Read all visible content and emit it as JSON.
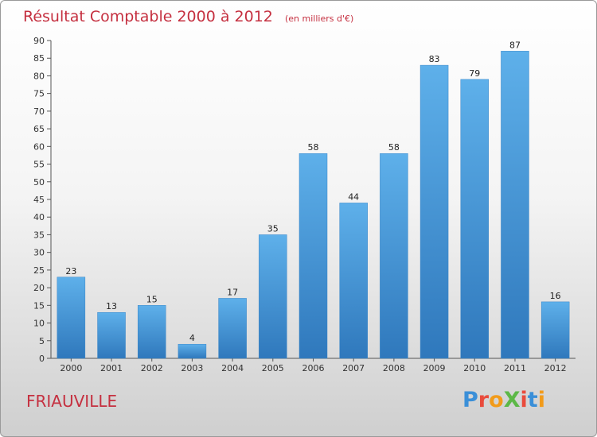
{
  "chart_data": {
    "type": "bar",
    "title": "Résultat Comptable 2000 à 2012",
    "subtitle": "(en milliers d'€)",
    "categories": [
      "2000",
      "2001",
      "2002",
      "2003",
      "2004",
      "2005",
      "2006",
      "2007",
      "2008",
      "2009",
      "2010",
      "2011",
      "2012"
    ],
    "values": [
      23,
      13,
      15,
      4,
      17,
      35,
      58,
      44,
      58,
      83,
      79,
      87,
      16
    ],
    "ylim": [
      0,
      90
    ],
    "yticks": [
      0,
      5,
      10,
      15,
      20,
      25,
      30,
      35,
      40,
      45,
      50,
      55,
      60,
      65,
      70,
      75,
      80,
      85,
      90
    ],
    "grid": false,
    "bar_color": "#4a98d8",
    "data_labels": true
  },
  "commune": "FRIAUVILLE",
  "logo": {
    "text": "ProXiti",
    "colors": [
      "#3a8fd8",
      "#e94b3c",
      "#f29b1a",
      "#5cb847",
      "#e94b3c",
      "#3a8fd8",
      "#f29b1a"
    ]
  }
}
